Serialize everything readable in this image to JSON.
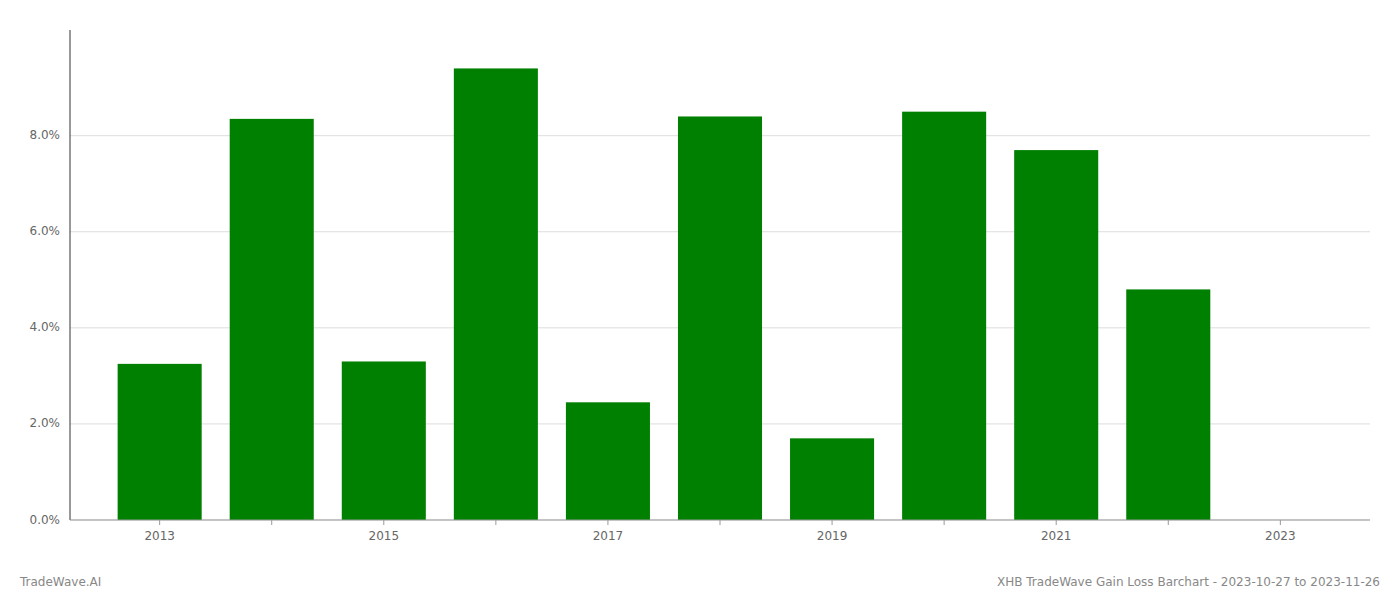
{
  "chart_data": {
    "type": "bar",
    "x": [
      2013,
      2014,
      2015,
      2016,
      2017,
      2018,
      2019,
      2020,
      2021,
      2022
    ],
    "values": [
      0.0325,
      0.0835,
      0.033,
      0.094,
      0.0245,
      0.084,
      0.017,
      0.085,
      0.077,
      0.048
    ],
    "color": "#008000",
    "xlim": [
      2012.2,
      2023.8
    ],
    "xticks": [
      {
        "value": 2013,
        "label": "2013"
      },
      {
        "value": 2014,
        "label": null
      },
      {
        "value": 2015,
        "label": "2015"
      },
      {
        "value": 2016,
        "label": null
      },
      {
        "value": 2017,
        "label": "2017"
      },
      {
        "value": 2018,
        "label": null
      },
      {
        "value": 2019,
        "label": "2019"
      },
      {
        "value": 2020,
        "label": null
      },
      {
        "value": 2021,
        "label": "2021"
      },
      {
        "value": 2022,
        "label": null
      },
      {
        "value": 2023,
        "label": "2023"
      }
    ],
    "ylim": [
      0,
      0.102
    ],
    "yticks": [
      {
        "value": 0.0,
        "label": "0.0%"
      },
      {
        "value": 0.02,
        "label": "2.0%"
      },
      {
        "value": 0.04,
        "label": "4.0%"
      },
      {
        "value": 0.06,
        "label": "6.0%"
      },
      {
        "value": 0.08,
        "label": "8.0%"
      }
    ],
    "grid": true,
    "annotations": [
      "TradeWave.AI",
      "XHB TradeWave Gain Loss Barchart - 2023-10-27 to 2023-11-26"
    ]
  }
}
